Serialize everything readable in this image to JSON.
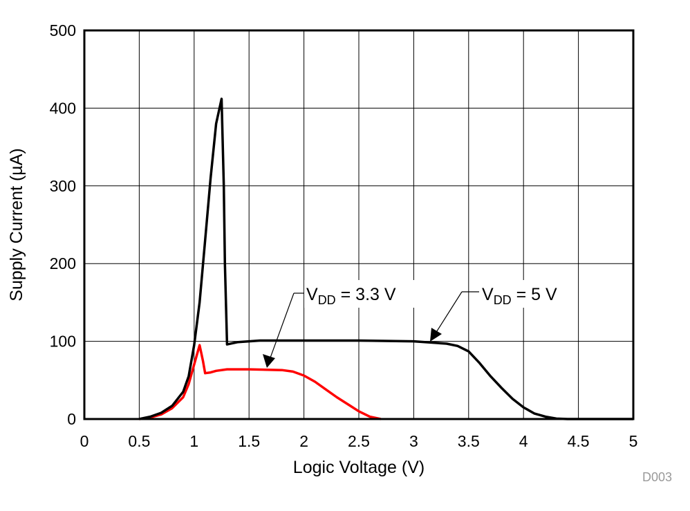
{
  "chart_data": {
    "type": "line",
    "title": "",
    "xlabel": "Logic Voltage (V)",
    "ylabel": "Supply Current (µA)",
    "xlim": [
      0,
      5
    ],
    "ylim": [
      0,
      500
    ],
    "xticks": [
      "0",
      "0.5",
      "1",
      "1.5",
      "2",
      "2.5",
      "3",
      "3.5",
      "4",
      "4.5",
      "5"
    ],
    "yticks": [
      "0",
      "100",
      "200",
      "300",
      "400",
      "500"
    ],
    "grid": true,
    "watermark": "D003",
    "series": [
      {
        "name": "VDD = 5 V",
        "label_main": "V",
        "label_sub": "DD",
        "label_rest": " = 5 V",
        "color": "#000000",
        "x": [
          0.5,
          0.6,
          0.7,
          0.8,
          0.9,
          0.95,
          1.0,
          1.05,
          1.1,
          1.15,
          1.2,
          1.25,
          1.27,
          1.28,
          1.3,
          1.4,
          1.6,
          2.5,
          3.0,
          3.3,
          3.4,
          3.5,
          3.6,
          3.7,
          3.8,
          3.9,
          4.0,
          4.1,
          4.2,
          4.3,
          4.4,
          5.0
        ],
        "y": [
          0,
          3,
          8,
          17,
          35,
          55,
          95,
          150,
          230,
          310,
          380,
          412,
          300,
          200,
          96,
          99,
          101,
          101,
          100,
          97,
          94,
          87,
          72,
          55,
          40,
          26,
          15,
          7,
          3,
          0.5,
          0,
          0
        ]
      },
      {
        "name": "VDD = 3.3 V",
        "label_main": "V",
        "label_sub": "DD",
        "label_rest": " = 3.3 V",
        "color": "#ff0000",
        "x": [
          0.5,
          0.6,
          0.7,
          0.8,
          0.9,
          0.95,
          1.0,
          1.05,
          1.08,
          1.1,
          1.15,
          1.2,
          1.3,
          1.5,
          1.8,
          1.9,
          2.0,
          2.1,
          2.2,
          2.3,
          2.4,
          2.5,
          2.6,
          2.7
        ],
        "y": [
          0,
          2,
          6,
          14,
          28,
          45,
          70,
          95,
          75,
          59,
          60,
          62,
          64,
          64,
          63,
          61,
          56,
          48,
          38,
          28,
          19,
          10,
          3,
          0
        ]
      }
    ]
  }
}
